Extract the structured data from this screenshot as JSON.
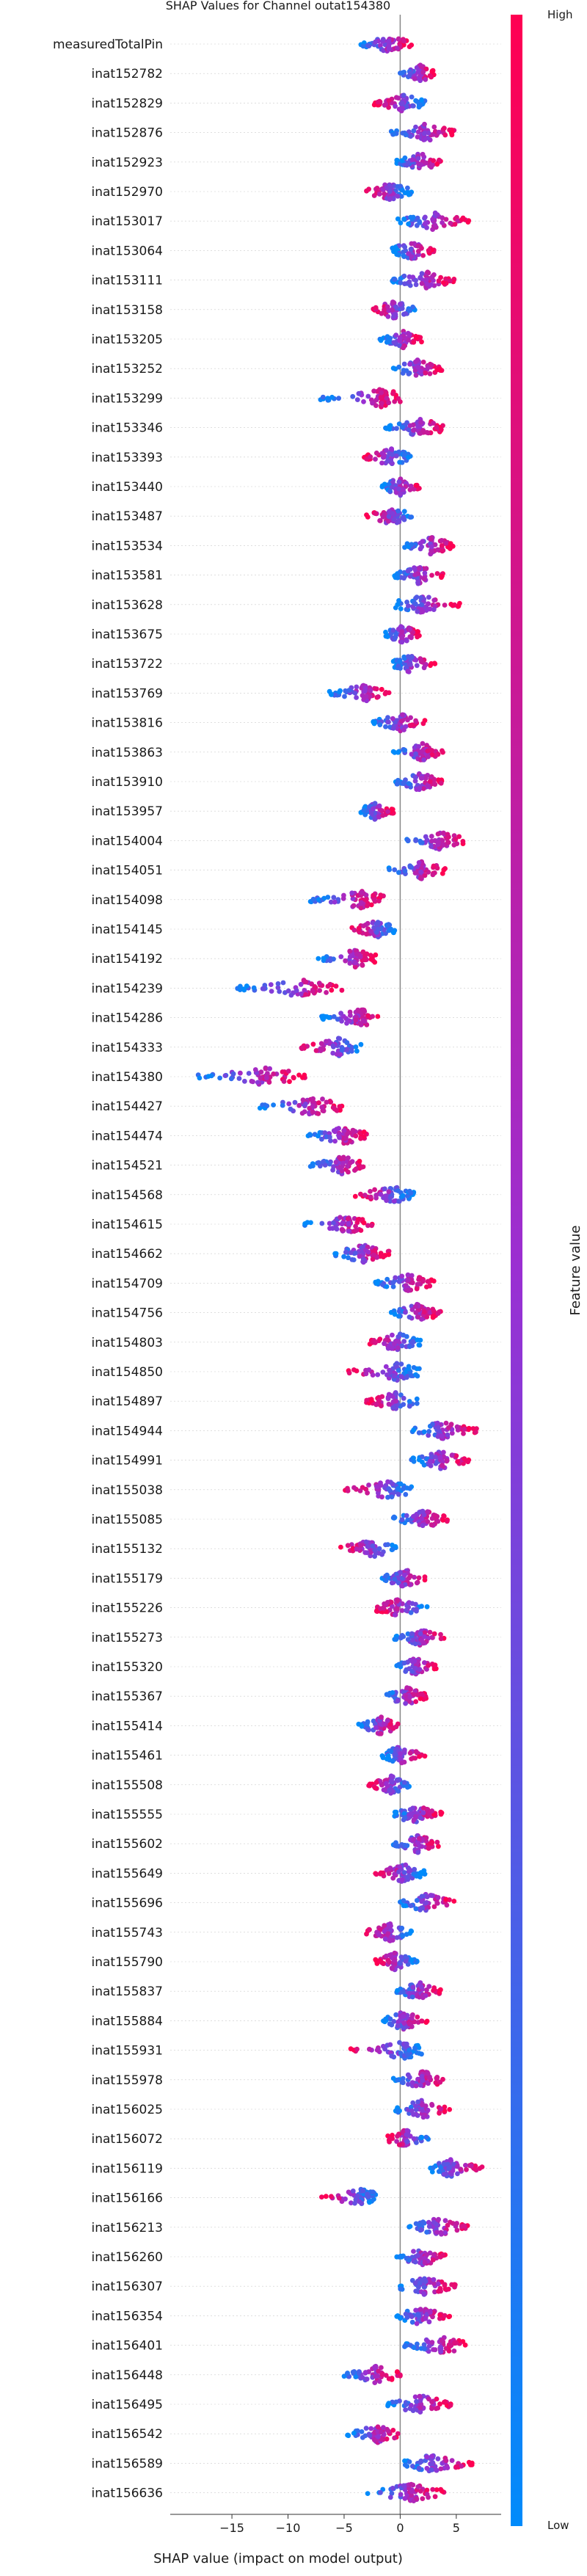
{
  "chart_data": {
    "type": "scatter",
    "subtype": "shap-beeswarm",
    "title": "SHAP Values for Channel outat154380",
    "xlabel": "SHAP value (impact on model output)",
    "xlim": [
      -20.5,
      9
    ],
    "xticks": [
      -15,
      -10,
      -5,
      0,
      5
    ],
    "colorbar": {
      "label": "Feature value",
      "high": "High",
      "low": "Low",
      "high_color": "#ff0052",
      "low_color": "#008bfb"
    },
    "features": [
      {
        "name": "measuredTotalPin",
        "min": -3.5,
        "max": 1.0,
        "center": -1.0,
        "high": "right"
      },
      {
        "name": "inat152782",
        "min": 0.0,
        "max": 3.0,
        "center": 1.8,
        "high": "right"
      },
      {
        "name": "inat152829",
        "min": -2.3,
        "max": 2.2,
        "center": 0.2,
        "high": "left"
      },
      {
        "name": "inat152876",
        "min": -0.8,
        "max": 4.8,
        "center": 2.1,
        "high": "right"
      },
      {
        "name": "inat152923",
        "min": -0.3,
        "max": 3.6,
        "center": 1.7,
        "high": "right"
      },
      {
        "name": "inat152970",
        "min": -3.0,
        "max": 1.0,
        "center": -0.9,
        "high": "left"
      },
      {
        "name": "inat153017",
        "min": -0.2,
        "max": 6.1,
        "center": 3.0,
        "high": "right"
      },
      {
        "name": "inat153064",
        "min": -0.7,
        "max": 3.0,
        "center": 1.0,
        "high": "right"
      },
      {
        "name": "inat153111",
        "min": -0.7,
        "max": 4.8,
        "center": 2.3,
        "high": "right"
      },
      {
        "name": "inat153158",
        "min": -2.4,
        "max": 1.3,
        "center": -0.6,
        "high": "left"
      },
      {
        "name": "inat153205",
        "min": -1.8,
        "max": 1.9,
        "center": 0.3,
        "high": "right"
      },
      {
        "name": "inat153252",
        "min": -0.6,
        "max": 3.7,
        "center": 1.6,
        "high": "right"
      },
      {
        "name": "inat153299",
        "min": -7.1,
        "max": 0.0,
        "center": -1.7,
        "high": "right"
      },
      {
        "name": "inat153346",
        "min": -1.3,
        "max": 3.8,
        "center": 1.8,
        "high": "right"
      },
      {
        "name": "inat153393",
        "min": -3.2,
        "max": 0.9,
        "center": -0.8,
        "high": "left"
      },
      {
        "name": "inat153440",
        "min": -1.6,
        "max": 1.7,
        "center": 0.0,
        "high": "right"
      },
      {
        "name": "inat153487",
        "min": -3.0,
        "max": 1.0,
        "center": -0.7,
        "high": "left"
      },
      {
        "name": "inat153534",
        "min": 0.4,
        "max": 4.7,
        "center": 2.8,
        "high": "right"
      },
      {
        "name": "inat153581",
        "min": -0.5,
        "max": 3.8,
        "center": 1.6,
        "high": "right"
      },
      {
        "name": "inat153628",
        "min": -0.4,
        "max": 5.3,
        "center": 1.9,
        "high": "right"
      },
      {
        "name": "inat153675",
        "min": -1.3,
        "max": 1.7,
        "center": 0.2,
        "high": "right"
      },
      {
        "name": "inat153722",
        "min": -0.6,
        "max": 3.1,
        "center": 0.9,
        "high": "right"
      },
      {
        "name": "inat153769",
        "min": -6.3,
        "max": -1.0,
        "center": -3.0,
        "high": "right"
      },
      {
        "name": "inat153816",
        "min": -2.4,
        "max": 2.2,
        "center": 0.0,
        "high": "right"
      },
      {
        "name": "inat153863",
        "min": -0.6,
        "max": 3.8,
        "center": 2.0,
        "high": "right"
      },
      {
        "name": "inat153910",
        "min": -0.4,
        "max": 3.7,
        "center": 1.7,
        "high": "right"
      },
      {
        "name": "inat153957",
        "min": -3.5,
        "max": -0.6,
        "center": -2.2,
        "high": "right"
      },
      {
        "name": "inat154004",
        "min": 0.6,
        "max": 5.6,
        "center": 3.5,
        "high": "right"
      },
      {
        "name": "inat154051",
        "min": -1.0,
        "max": 4.0,
        "center": 1.9,
        "high": "right"
      },
      {
        "name": "inat154098",
        "min": -8.0,
        "max": -1.5,
        "center": -3.5,
        "high": "right"
      },
      {
        "name": "inat154145",
        "min": -4.3,
        "max": -0.5,
        "center": -2.0,
        "high": "left"
      },
      {
        "name": "inat154192",
        "min": -7.3,
        "max": -2.2,
        "center": -4.0,
        "high": "right"
      },
      {
        "name": "inat154239",
        "min": -14.5,
        "max": -5.2,
        "center": -8.5,
        "high": "right"
      },
      {
        "name": "inat154286",
        "min": -7.0,
        "max": -2.0,
        "center": -3.6,
        "high": "right"
      },
      {
        "name": "inat154333",
        "min": -8.8,
        "max": -3.5,
        "center": -5.5,
        "high": "left"
      },
      {
        "name": "inat154380",
        "min": -18.0,
        "max": -8.5,
        "center": -12.0,
        "high": "right"
      },
      {
        "name": "inat154427",
        "min": -12.5,
        "max": -5.2,
        "center": -7.8,
        "high": "right"
      },
      {
        "name": "inat154474",
        "min": -8.2,
        "max": -3.0,
        "center": -5.0,
        "high": "right"
      },
      {
        "name": "inat154521",
        "min": -8.0,
        "max": -3.3,
        "center": -5.2,
        "high": "right"
      },
      {
        "name": "inat154568",
        "min": -4.0,
        "max": 1.2,
        "center": -0.9,
        "high": "left"
      },
      {
        "name": "inat154615",
        "min": -8.5,
        "max": -2.5,
        "center": -4.6,
        "high": "right"
      },
      {
        "name": "inat154662",
        "min": -5.8,
        "max": -1.0,
        "center": -3.3,
        "high": "right"
      },
      {
        "name": "inat154709",
        "min": -2.2,
        "max": 3.0,
        "center": 0.7,
        "high": "right"
      },
      {
        "name": "inat154756",
        "min": -0.8,
        "max": 3.6,
        "center": 1.6,
        "high": "right"
      },
      {
        "name": "inat154803",
        "min": -2.7,
        "max": 1.8,
        "center": -0.2,
        "high": "left"
      },
      {
        "name": "inat154850",
        "min": -4.6,
        "max": 1.7,
        "center": -0.3,
        "high": "left"
      },
      {
        "name": "inat154897",
        "min": -3.0,
        "max": 1.5,
        "center": -0.4,
        "high": "left"
      },
      {
        "name": "inat154944",
        "min": 1.1,
        "max": 6.8,
        "center": 3.7,
        "high": "right"
      },
      {
        "name": "inat154991",
        "min": 1.0,
        "max": 6.1,
        "center": 3.6,
        "high": "right"
      },
      {
        "name": "inat155038",
        "min": -4.9,
        "max": 1.0,
        "center": -1.2,
        "high": "left"
      },
      {
        "name": "inat155085",
        "min": -0.6,
        "max": 4.2,
        "center": 2.0,
        "high": "right"
      },
      {
        "name": "inat155132",
        "min": -5.3,
        "max": -0.4,
        "center": -2.6,
        "high": "left"
      },
      {
        "name": "inat155179",
        "min": -1.6,
        "max": 2.2,
        "center": 0.4,
        "high": "right"
      },
      {
        "name": "inat155226",
        "min": -2.1,
        "max": 2.4,
        "center": -0.3,
        "high": "left"
      },
      {
        "name": "inat155273",
        "min": -0.5,
        "max": 3.9,
        "center": 1.8,
        "high": "right"
      },
      {
        "name": "inat155320",
        "min": -0.3,
        "max": 3.2,
        "center": 1.4,
        "high": "right"
      },
      {
        "name": "inat155367",
        "min": -1.2,
        "max": 2.3,
        "center": 0.6,
        "high": "right"
      },
      {
        "name": "inat155414",
        "min": -3.7,
        "max": -0.2,
        "center": -1.7,
        "high": "right"
      },
      {
        "name": "inat155461",
        "min": -1.6,
        "max": 2.2,
        "center": 0.0,
        "high": "right"
      },
      {
        "name": "inat155508",
        "min": -2.8,
        "max": 0.8,
        "center": -0.8,
        "high": "left"
      },
      {
        "name": "inat155555",
        "min": -0.5,
        "max": 3.7,
        "center": 1.3,
        "high": "right"
      },
      {
        "name": "inat155602",
        "min": -0.6,
        "max": 3.4,
        "center": 1.6,
        "high": "right"
      },
      {
        "name": "inat155649",
        "min": -2.2,
        "max": 2.2,
        "center": 0.3,
        "high": "left"
      },
      {
        "name": "inat155696",
        "min": 0.0,
        "max": 4.8,
        "center": 2.3,
        "high": "right"
      },
      {
        "name": "inat155743",
        "min": -3.0,
        "max": 1.0,
        "center": -0.9,
        "high": "left"
      },
      {
        "name": "inat155790",
        "min": -2.2,
        "max": 1.5,
        "center": -0.5,
        "high": "left"
      },
      {
        "name": "inat155837",
        "min": -0.3,
        "max": 3.6,
        "center": 1.7,
        "high": "right"
      },
      {
        "name": "inat155884",
        "min": -1.5,
        "max": 2.4,
        "center": 0.3,
        "high": "right"
      },
      {
        "name": "inat155931",
        "min": -4.4,
        "max": 1.9,
        "center": 0.4,
        "high": "left"
      },
      {
        "name": "inat155978",
        "min": -0.6,
        "max": 3.8,
        "center": 2.0,
        "high": "right"
      },
      {
        "name": "inat156025",
        "min": -0.4,
        "max": 4.4,
        "center": 1.9,
        "high": "right"
      },
      {
        "name": "inat156072",
        "min": -1.1,
        "max": 2.5,
        "center": 0.5,
        "high": "left"
      },
      {
        "name": "inat156119",
        "min": 2.7,
        "max": 7.3,
        "center": 4.5,
        "high": "right"
      },
      {
        "name": "inat156166",
        "min": -7.0,
        "max": -2.2,
        "center": -3.5,
        "high": "left"
      },
      {
        "name": "inat156213",
        "min": 0.8,
        "max": 6.0,
        "center": 3.2,
        "high": "right"
      },
      {
        "name": "inat156260",
        "min": -0.3,
        "max": 4.0,
        "center": 2.0,
        "high": "right"
      },
      {
        "name": "inat156307",
        "min": 0.0,
        "max": 4.9,
        "center": 2.2,
        "high": "right"
      },
      {
        "name": "inat156354",
        "min": -0.3,
        "max": 4.4,
        "center": 1.8,
        "high": "right"
      },
      {
        "name": "inat156401",
        "min": 0.4,
        "max": 5.8,
        "center": 3.6,
        "high": "right"
      },
      {
        "name": "inat156448",
        "min": -5.0,
        "max": 0.0,
        "center": -2.2,
        "high": "right"
      },
      {
        "name": "inat156495",
        "min": -1.1,
        "max": 4.5,
        "center": 1.8,
        "high": "right"
      },
      {
        "name": "inat156542",
        "min": -4.7,
        "max": -0.2,
        "center": -2.0,
        "high": "right"
      },
      {
        "name": "inat156589",
        "min": 0.4,
        "max": 6.4,
        "center": 2.9,
        "high": "right"
      },
      {
        "name": "inat156636",
        "min": -2.9,
        "max": 3.9,
        "center": 0.9,
        "high": "right"
      }
    ]
  }
}
